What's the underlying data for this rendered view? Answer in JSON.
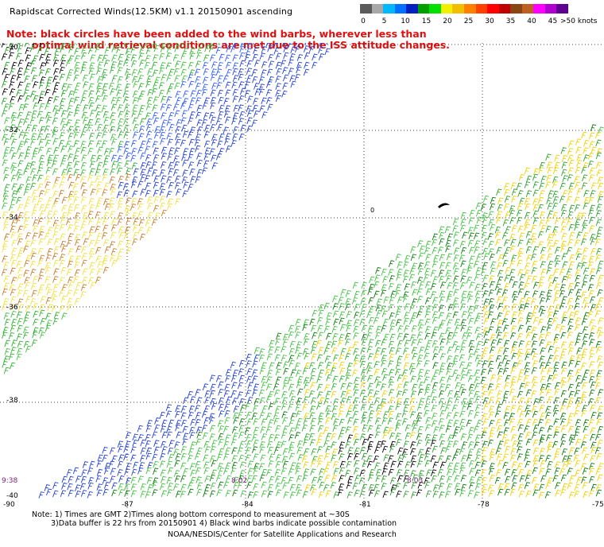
{
  "header": {
    "title": "Rapidscat Corrected Winds(12.5KM) v1.1 20150901 ascending"
  },
  "note": {
    "line1": "Note: black circles have been added to the wind barbs, wherever less than",
    "line2": "optimal wind retrieval conditions are met due to the ISS attitude changes."
  },
  "legend": {
    "unit_label": ">50 knots",
    "ticks": [
      "0",
      "5",
      "10",
      "15",
      "20",
      "25",
      "30",
      "35",
      "40",
      "45"
    ],
    "colors": [
      "#5a5a5a",
      "#a8a8a8",
      "#00b8ff",
      "#0070ff",
      "#0020c0",
      "#00a000",
      "#00e000",
      "#f0f000",
      "#f0c000",
      "#ff8000",
      "#ff4000",
      "#ff0000",
      "#c00000",
      "#8b4513",
      "#c06020",
      "#ff00ff",
      "#b000d0",
      "#600090"
    ]
  },
  "map": {
    "lat_labels": [
      "-30",
      "-32",
      "-34",
      "-36",
      "-38",
      "-40"
    ],
    "lon_labels": [
      "-90",
      "-87",
      "-84",
      "-81",
      "-78",
      "-75"
    ],
    "time_labels": [
      "9:38",
      "8:02",
      "8:03"
    ],
    "marker": "0"
  },
  "footer": {
    "line1": "Note: 1) Times are GMT 2)Times along bottom correspond to measurement at ~30S",
    "line2": "3)Data buffer is 22 hrs from 20150901 4) Black wind barbs indicate possible contamination",
    "line3": "NOAA/NESDIS/Center for Satellite Applications and Research"
  }
}
